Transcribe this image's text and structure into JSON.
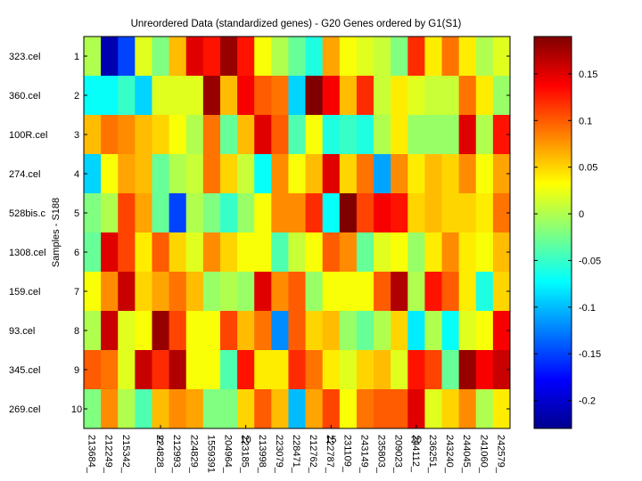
{
  "chart_data": {
    "type": "heatmap",
    "title": "Unreordered Data (standardized genes) - G20 Genes ordered by G1(S1)",
    "ylabel": "Samples - S188",
    "xlabel": "",
    "row_labels": [
      "323.cel",
      "360.cel",
      "100R.cel",
      "274.cel",
      "528bis.c",
      "1308.cel",
      "159.cel",
      "93.cel",
      "345.cel",
      "269.cel"
    ],
    "row_numbers": [
      "1",
      "2",
      "3",
      "4",
      "5",
      "6",
      "7",
      "8",
      "9",
      "10"
    ],
    "col_tick_labels": [
      "5",
      "10",
      "15",
      "20"
    ],
    "col_tick_positions": [
      5,
      10,
      15,
      20
    ],
    "col_labels": [
      "213684_",
      "212249_",
      "215342_",
      "",
      "224828_",
      "212993_",
      "224829_",
      "1559391",
      "204964_",
      "223185_",
      "213998_",
      "223079_",
      "228471_",
      "212762_",
      "222787_",
      "231109_",
      "243149_",
      "235803_",
      "209023_",
      "244112_",
      "236251_",
      "243240_",
      "244045_",
      "241060_",
      "242579_"
    ],
    "color_range": [
      -0.23,
      0.19
    ],
    "colorbar_ticks": [
      0.15,
      0.1,
      0.05,
      0,
      -0.05,
      -0.1,
      -0.15,
      -0.2
    ],
    "colormap": "jet",
    "values": [
      [
        0.0,
        -0.21,
        -0.15,
        0.02,
        -0.02,
        0.06,
        0.15,
        0.13,
        0.18,
        0.13,
        0.03,
        0.0,
        -0.03,
        -0.06,
        0.07,
        0.03,
        0.02,
        0.01,
        -0.02,
        0.12,
        0.04,
        0.09,
        0.04,
        0.0,
        0.02
      ],
      [
        -0.07,
        -0.07,
        -0.05,
        -0.09,
        0.02,
        0.02,
        0.02,
        0.18,
        0.06,
        0.14,
        0.1,
        0.09,
        -0.09,
        0.19,
        0.14,
        0.06,
        0.12,
        0.01,
        0.04,
        0.02,
        0.01,
        0.01,
        0.09,
        0.04,
        -0.01
      ],
      [
        0.06,
        0.09,
        0.08,
        0.06,
        0.05,
        0.03,
        0.0,
        0.09,
        -0.03,
        0.06,
        0.15,
        0.1,
        -0.04,
        0.03,
        -0.06,
        -0.05,
        -0.06,
        0.0,
        0.04,
        -0.01,
        -0.01,
        -0.01,
        0.15,
        0.0,
        0.13
      ],
      [
        -0.09,
        0.03,
        0.07,
        0.06,
        -0.03,
        0.0,
        0.01,
        0.09,
        0.05,
        0.01,
        -0.07,
        0.08,
        0.03,
        0.06,
        0.15,
        0.05,
        0.09,
        -0.11,
        0.08,
        0.04,
        0.06,
        0.05,
        0.08,
        0.03,
        0.07
      ],
      [
        -0.02,
        0.0,
        0.11,
        0.07,
        -0.03,
        -0.15,
        0.0,
        -0.02,
        -0.05,
        -0.01,
        0.03,
        0.08,
        0.08,
        0.12,
        -0.07,
        0.19,
        0.11,
        0.14,
        0.13,
        0.05,
        0.06,
        0.05,
        0.05,
        0.04,
        0.09
      ],
      [
        -0.03,
        0.15,
        0.11,
        0.04,
        0.1,
        0.05,
        0.02,
        0.08,
        0.05,
        0.03,
        0.03,
        -0.04,
        0.01,
        0.03,
        0.1,
        0.08,
        -0.03,
        0.02,
        0.03,
        -0.01,
        0.04,
        0.08,
        0.04,
        0.03,
        0.06
      ],
      [
        0.03,
        0.08,
        0.16,
        0.05,
        0.07,
        0.09,
        0.06,
        -0.01,
        0.0,
        -0.01,
        0.15,
        0.08,
        0.1,
        -0.01,
        0.03,
        0.03,
        0.03,
        0.1,
        0.17,
        0.0,
        0.13,
        0.1,
        0.04,
        -0.06,
        0.05
      ],
      [
        0.0,
        0.16,
        0.02,
        0.03,
        0.18,
        0.11,
        0.03,
        0.03,
        0.11,
        0.06,
        0.09,
        -0.12,
        0.1,
        0.05,
        0.06,
        -0.01,
        -0.03,
        0.0,
        0.05,
        -0.08,
        0.0,
        -0.07,
        0.02,
        0.03,
        0.14
      ],
      [
        0.1,
        0.09,
        0.02,
        0.16,
        0.12,
        0.17,
        0.03,
        0.03,
        -0.04,
        0.13,
        0.04,
        0.04,
        0.12,
        0.09,
        0.04,
        0.02,
        0.05,
        0.06,
        0.02,
        0.13,
        0.11,
        -0.03,
        0.18,
        0.14,
        0.16
      ],
      [
        -0.02,
        0.08,
        0.0,
        -0.04,
        0.06,
        0.08,
        0.07,
        -0.02,
        -0.02,
        0.05,
        0.1,
        0.06,
        -0.1,
        0.07,
        0.11,
        0.03,
        0.09,
        0.1,
        0.1,
        0.15,
        0.02,
        0.05,
        0.08,
        0.0,
        0.04
      ]
    ]
  }
}
